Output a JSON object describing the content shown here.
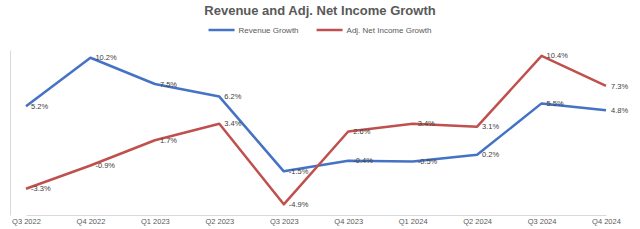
{
  "chart_data": {
    "type": "line",
    "title": "Revenue and Adj. Net Income Growth",
    "categories": [
      "Q3 2022",
      "Q4 2022",
      "Q1 2023",
      "Q2 2023",
      "Q3 2023",
      "Q4 2023",
      "Q1 2024",
      "Q2 2024",
      "Q3 2024",
      "Q4 2024"
    ],
    "series": [
      {
        "name": "Revenue Growth",
        "color": "#4472c4",
        "values": [
          5.2,
          10.2,
          7.5,
          6.2,
          -1.5,
          -0.4,
          -0.5,
          0.2,
          5.5,
          4.8
        ],
        "value_labels": [
          "5.2%",
          "10.2%",
          "7.5%",
          "6.2%",
          "-1.5%",
          "-0.4%",
          "-0.5%",
          "0.2%",
          "5.5%",
          "4.8%"
        ]
      },
      {
        "name": "Adj. Net Income Growth",
        "color": "#c0504d",
        "values": [
          -3.3,
          -0.9,
          1.7,
          3.4,
          -4.9,
          2.6,
          3.4,
          3.1,
          10.4,
          7.3
        ],
        "value_labels": [
          "-3.3%",
          "-0.9%",
          "1.7%",
          "3.4%",
          "-4.9%",
          "2.6%",
          "3.4%",
          "3.1%",
          "10.4%",
          "7.3%"
        ]
      }
    ],
    "ylim": [
      -6,
      11
    ],
    "grid": false,
    "legend": "top",
    "data_labels": true,
    "tick_labels": "x"
  }
}
